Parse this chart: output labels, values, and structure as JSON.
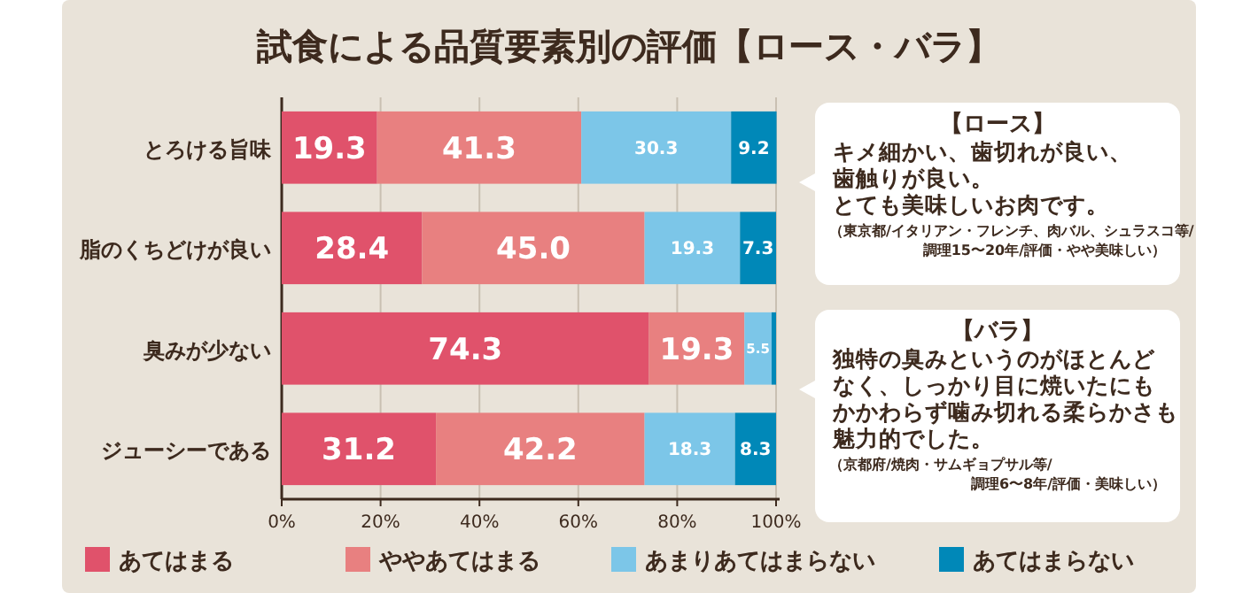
{
  "chart_data": {
    "type": "bar",
    "orientation": "horizontal",
    "stacked": true,
    "title": "試食による品質要素別の評価【ロース・バラ】",
    "categories": [
      "とろける旨味",
      "脂のくちどけが良い",
      "臭みが少ない",
      "ジューシーである"
    ],
    "series": [
      {
        "name": "あてはまる",
        "color": "#e0526b",
        "values": [
          19.3,
          28.4,
          74.3,
          31.2
        ],
        "value_labels": [
          "19.3",
          "28.4",
          "74.3",
          "31.2"
        ]
      },
      {
        "name": "ややあてはまる",
        "color": "#e88080",
        "values": [
          41.3,
          45.0,
          19.3,
          42.2
        ],
        "value_labels": [
          "41.3",
          "45.0",
          "19.3",
          "42.2"
        ]
      },
      {
        "name": "あまりあてはまらない",
        "color": "#7cc6e8",
        "values": [
          30.3,
          19.3,
          5.5,
          18.3
        ],
        "value_labels": [
          "30.3",
          "19.3",
          "5.5",
          "18.3"
        ]
      },
      {
        "name": "あてはまらない",
        "color": "#0088b8",
        "values": [
          9.2,
          7.3,
          0.9,
          8.3
        ],
        "value_labels": [
          "9.2",
          "7.3",
          null,
          "8.3"
        ]
      }
    ],
    "xlim": [
      0,
      100
    ],
    "xticks": [
      {
        "value": 0,
        "label": "0%"
      },
      {
        "value": 20,
        "label": "20%"
      },
      {
        "value": 40,
        "label": "40%"
      },
      {
        "value": 60,
        "label": "60%"
      },
      {
        "value": 80,
        "label": "80%"
      },
      {
        "value": 100,
        "label": "100%"
      }
    ],
    "grid": "x",
    "legend": "bottom",
    "annotations": [
      "【ロース】",
      "キメ細かい、歯切れが良い、",
      "歯触りが良い。",
      "とても美味しいお肉です。",
      "（東京都/イタリアン・フレンチ、肉バル、シュラスコ等/",
      "調理15〜20年/評価・やや美味しい）",
      "【バラ】",
      "独特の臭みというのがほとんど",
      "なく、しっかり目に焼いたにも",
      "かかわらず噛み切れる柔らかさも",
      "魅力的でした。",
      "（京都府/焼肉・サムギョプサル等/",
      "調理6〜8年/評価・美味しい）"
    ]
  }
}
